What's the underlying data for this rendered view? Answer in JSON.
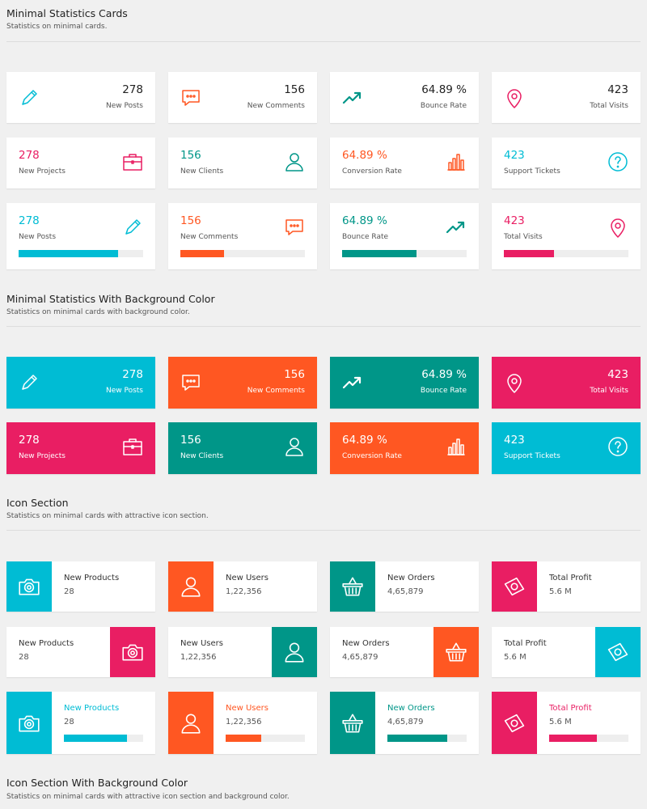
{
  "colors": {
    "cyan": "#00bcd4",
    "orange": "#ff5722",
    "teal": "#009688",
    "pink": "#e91e63",
    "dark": "#222222"
  },
  "sections": [
    {
      "title": "Minimal Statistics Cards",
      "subtitle": "Statistics on minimal cards."
    },
    {
      "title": "Minimal Statistics With Background Color",
      "subtitle": "Statistics on minimal cards with background color."
    },
    {
      "title": "Icon Section",
      "subtitle": "Statistics on minimal cards with attractive icon section."
    },
    {
      "title": "Icon Section With Background Color",
      "subtitle": "Statistics on minimal cards with attractive icon section and background color."
    }
  ],
  "minimal_row1": [
    {
      "value": "278",
      "label": "New Posts",
      "icon": "pencil-icon",
      "color": "cyan"
    },
    {
      "value": "156",
      "label": "New Comments",
      "icon": "comment-icon",
      "color": "orange"
    },
    {
      "value": "64.89 %",
      "label": "Bounce Rate",
      "icon": "trending-up-icon",
      "color": "teal"
    },
    {
      "value": "423",
      "label": "Total Visits",
      "icon": "map-pin-icon",
      "color": "pink"
    }
  ],
  "minimal_row2": [
    {
      "value": "278",
      "label": "New Projects",
      "icon": "briefcase-icon",
      "color": "pink"
    },
    {
      "value": "156",
      "label": "New Clients",
      "icon": "user-icon",
      "color": "teal"
    },
    {
      "value": "64.89 %",
      "label": "Conversion Rate",
      "icon": "bar-chart-icon",
      "color": "orange"
    },
    {
      "value": "423",
      "label": "Support Tickets",
      "icon": "help-circle-icon",
      "color": "cyan"
    }
  ],
  "minimal_row3": [
    {
      "value": "278",
      "label": "New Posts",
      "icon": "pencil-icon",
      "color": "cyan",
      "progress": 80
    },
    {
      "value": "156",
      "label": "New Comments",
      "icon": "comment-icon",
      "color": "orange",
      "progress": 35
    },
    {
      "value": "64.89 %",
      "label": "Bounce Rate",
      "icon": "trending-up-icon",
      "color": "teal",
      "progress": 60
    },
    {
      "value": "423",
      "label": "Total Visits",
      "icon": "map-pin-icon",
      "color": "pink",
      "progress": 40
    }
  ],
  "bg_row1": [
    {
      "value": "278",
      "label": "New Posts",
      "icon": "pencil-icon",
      "color": "cyan"
    },
    {
      "value": "156",
      "label": "New Comments",
      "icon": "comment-icon",
      "color": "orange"
    },
    {
      "value": "64.89 %",
      "label": "Bounce Rate",
      "icon": "trending-up-icon",
      "color": "teal"
    },
    {
      "value": "423",
      "label": "Total Visits",
      "icon": "map-pin-icon",
      "color": "pink"
    }
  ],
  "bg_row2": [
    {
      "value": "278",
      "label": "New Projects",
      "icon": "briefcase-icon",
      "color": "pink"
    },
    {
      "value": "156",
      "label": "New Clients",
      "icon": "user-icon",
      "color": "teal"
    },
    {
      "value": "64.89 %",
      "label": "Conversion Rate",
      "icon": "bar-chart-icon",
      "color": "orange"
    },
    {
      "value": "423",
      "label": "Support Tickets",
      "icon": "help-circle-icon",
      "color": "cyan"
    }
  ],
  "icon_row1": [
    {
      "title": "New Products",
      "value": "28",
      "icon": "camera-icon",
      "color": "cyan"
    },
    {
      "title": "New Users",
      "value": "1,22,356",
      "icon": "user-icon",
      "color": "orange"
    },
    {
      "title": "New Orders",
      "value": "4,65,879",
      "icon": "basket-icon",
      "color": "teal"
    },
    {
      "title": "Total Profit",
      "value": "5.6 M",
      "icon": "money-icon",
      "color": "pink"
    }
  ],
  "icon_row2": [
    {
      "title": "New Products",
      "value": "28",
      "icon": "camera-icon",
      "color": "pink"
    },
    {
      "title": "New Users",
      "value": "1,22,356",
      "icon": "user-icon",
      "color": "teal"
    },
    {
      "title": "New Orders",
      "value": "4,65,879",
      "icon": "basket-icon",
      "color": "orange"
    },
    {
      "title": "Total Profit",
      "value": "5.6 M",
      "icon": "money-icon",
      "color": "cyan"
    }
  ],
  "icon_row3": [
    {
      "title": "New Products",
      "value": "28",
      "icon": "camera-icon",
      "color": "cyan",
      "progress": 80
    },
    {
      "title": "New Users",
      "value": "1,22,356",
      "icon": "user-icon",
      "color": "orange",
      "progress": 45
    },
    {
      "title": "New Orders",
      "value": "4,65,879",
      "icon": "basket-icon",
      "color": "teal",
      "progress": 75
    },
    {
      "title": "Total Profit",
      "value": "5.6 M",
      "icon": "money-icon",
      "color": "pink",
      "progress": 60
    }
  ]
}
